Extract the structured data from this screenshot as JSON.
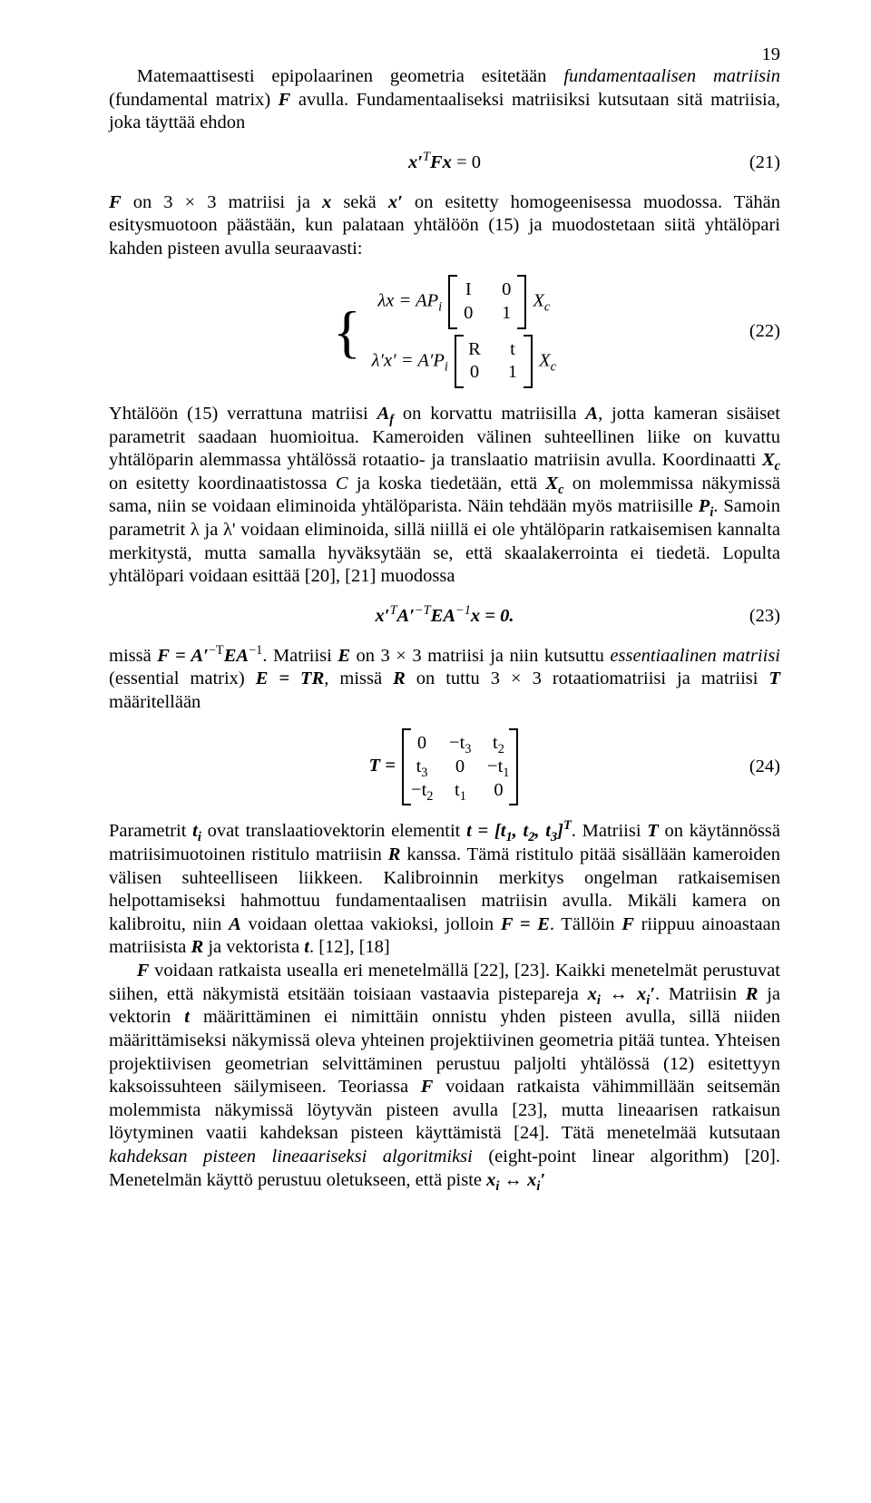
{
  "page_number": "19",
  "p1": "Matemaattisesti epipolaarinen geometria esitetään ",
  "p1_em": "fundamentaalisen matriisin",
  "p1b": " (fundamental matrix) ",
  "p1c": " avulla. Fundamentaaliseksi matriisiksi kutsutaan sitä matriisia, joka täyttää ehdon",
  "eq21_lhs_a": "x′",
  "eq21_lhs_sup": "T",
  "eq21_lhs_b": "Fx",
  "eq21_rhs": " = 0",
  "eq21_num": "(21)",
  "p2a": "F",
  "p2b": " on 3 × 3 matriisi ja ",
  "p2c": "x",
  "p2d": " sekä ",
  "p2e": "x′",
  "p2f": " on esitetty homogeenisessa muodossa. Tähän esitysmuotoon päästään, kun palataan yhtälöön (15) ja muodostetaan siitä yhtälöpari kahden pisteen avulla seuraavasti:",
  "eq22_line1_a": "λx = AP",
  "eq22_line1_sub": "i",
  "eq22_m1_r1c1": "I",
  "eq22_m1_r1c2": "0",
  "eq22_m1_r2c1": "0",
  "eq22_m1_r2c2": "1",
  "eq22_line1_c": "X",
  "eq22_line1_csub": "c",
  "eq22_line2_a": "λ′x′ = A′P",
  "eq22_line2_sub": "i",
  "eq22_m2_r1c1": "R",
  "eq22_m2_r1c2": "t",
  "eq22_m2_r2c1": "0",
  "eq22_m2_r2c2": "1",
  "eq22_line2_c": "X",
  "eq22_line2_csub": "c",
  "eq22_num": "(22)",
  "p3a": "Yhtälöön (15) verrattuna matriisi ",
  "p3b": "A",
  "p3b_sub": "f",
  "p3c": " on korvattu matriisilla ",
  "p3d": "A",
  "p3e": ", jotta kameran sisäiset parametrit saadaan huomioitua. Kameroiden välinen suhteellinen liike on kuvattu yhtälöparin alemmassa yhtälössä rotaatio- ja translaatio matriisin avulla. Koordinaatti ",
  "p3f": "X",
  "p3f_sub": "c",
  "p3g": " on esitetty koordinaatistossa ",
  "p3h": "C",
  "p3i": " ja koska tiedetään, että ",
  "p3j": "X",
  "p3j_sub": "c",
  "p3k": " on molemmissa näkymissä sama, niin se voidaan eliminoida yhtälöparista. Näin tehdään myös matriisille ",
  "p3l": "P",
  "p3l_sub": "i",
  "p3m": ". Samoin parametrit λ ja λ' voidaan eliminoida, sillä niillä ei ole yhtälöparin ratkaisemisen kannalta merkitystä, mutta samalla hyväksytään se, että skaalakerrointa ei tiedetä. Lopulta yhtälöpari voidaan esittää [20], [21] muodossa",
  "eq23_a": "x′",
  "eq23_sup1": "T",
  "eq23_b": "A′",
  "eq23_sup2": "−T",
  "eq23_c": "EA",
  "eq23_sup3": "−1",
  "eq23_d": "x = 0.",
  "eq23_num": "(23)",
  "p4a": "missä ",
  "p4b": "F = A′",
  "p4b_sup": "−T",
  "p4c": "EA",
  "p4c_sup": "−1",
  "p4d": ". Matriisi ",
  "p4e": "E",
  "p4f": " on 3 × 3 matriisi ja niin kutsuttu ",
  "p4g_em": "essentiaalinen matriisi",
  "p4h": " (essential matrix) ",
  "p4i": "E = TR",
  "p4j": ", missä ",
  "p4k": "R",
  "p4l": " on tuttu 3 × 3 rotaatiomatriisi ja matriisi ",
  "p4m": "T",
  "p4n": " määritellään",
  "eq24_pre": "T = ",
  "eq24": {
    "r1c1": "0",
    "r1c2": "−t",
    "r1c2_sub": "3",
    "r1c3": "t",
    "r1c3_sub": "2",
    "r2c1": "t",
    "r2c1_sub": "3",
    "r2c2": "0",
    "r2c3": "−t",
    "r2c3_sub": "1",
    "r3c1": "−t",
    "r3c1_sub": "2",
    "r3c2": "t",
    "r3c2_sub": "1",
    "r3c3": "0"
  },
  "eq24_num": "(24)",
  "p5a": "Parametrit ",
  "p5b": "t",
  "p5b_sub": "i",
  "p5c": " ovat translaatiovektorin elementit ",
  "p5d": "t = [t",
  "p5d_s1": "1",
  "p5e": ", t",
  "p5e_s2": "2",
  "p5f": ", t",
  "p5f_s3": "3",
  "p5g": "]",
  "p5g_sup": "T",
  "p5h": ". Matriisi ",
  "p5i": "T",
  "p5j": " on käytännössä matriisimuotoinen ristitulo matriisin ",
  "p5k": "R",
  "p5l": " kanssa. Tämä ristitulo pitää sisällään kameroiden välisen suhteelliseen liikkeen. Kalibroinnin merkitys ongelman ratkaisemisen helpottamiseksi hahmottuu fundamentaalisen matriisin avulla. Mikäli kamera on kalibroitu, niin ",
  "p5m": "A",
  "p5n": " voidaan olettaa vakioksi, jolloin ",
  "p5o": "F = E",
  "p5p": ". Tällöin ",
  "p5q": "F",
  "p5r": " riippuu ainoastaan matriisista ",
  "p5s": "R",
  "p5t": " ja vektorista ",
  "p5u": "t",
  "p5v": ". [12], [18]",
  "p6a": "F",
  "p6b": " voidaan ratkaista usealla eri menetelmällä [22], [23]. Kaikki menetelmät perustuvat siihen, että näkymistä etsitään toisiaan vastaavia pistepareja ",
  "p6c": "x",
  "p6c_sub": "i",
  "p6d": " ↔ ",
  "p6e": "x",
  "p6e_sub": "i",
  "p6e_prime": "′",
  "p6f": ". Matriisin ",
  "p6g": "R",
  "p6h": " ja vektorin ",
  "p6i": "t",
  "p6j": " määrittäminen ei nimittäin onnistu yhden pisteen avulla, sillä niiden määrittämiseksi näkymissä oleva yhteinen projektiivinen geometria pitää tuntea. Yhteisen projektiivisen geometrian selvittäminen perustuu paljolti yhtälössä (12) esitettyyn kaksoissuhteen säilymiseen. Teoriassa ",
  "p6k": "F",
  "p6l": " voidaan ratkaista vähimmillään seitsemän molemmista näkymissä löytyvän pisteen avulla [23], mutta lineaarisen ratkaisun löytyminen vaatii kahdeksan pisteen käyttämistä [24]. Tätä menetelmää kutsutaan ",
  "p6m_em": "kahdeksan pisteen lineaariseksi algoritmiksi",
  "p6n": " (eight-point linear algorithm) [20]. Menetelmän käyttö perustuu oletukseen, että piste ",
  "p6o": "x",
  "p6o_sub": "i",
  "p6p": " ↔ ",
  "p6q": "x",
  "p6q_sub": "i",
  "p6q_prime": "′"
}
